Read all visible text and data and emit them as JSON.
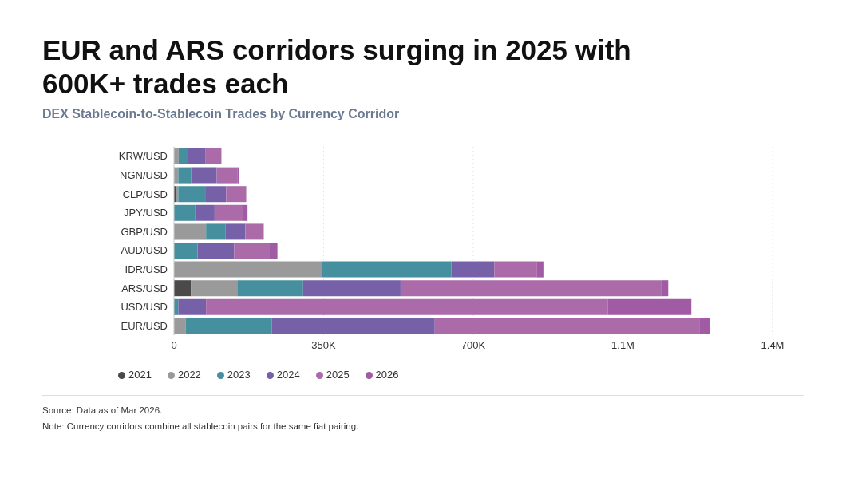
{
  "chart_data": {
    "type": "bar",
    "title": "EUR and ARS corridors surging in 2025 with 600K+ trades each",
    "subtitle": "DEX Stablecoin-to-Stablecoin Trades by Currency Corridor",
    "orientation": "horizontal",
    "stacked": true,
    "categories": [
      "KRW/USD",
      "NGN/USD",
      "CLP/USD",
      "JPY/USD",
      "GBP/USD",
      "AUD/USD",
      "IDR/USD",
      "ARS/USD",
      "USD/USD",
      "EUR/USD"
    ],
    "series": [
      {
        "name": "2021",
        "color": "#4a4a4a",
        "values": [
          0,
          0,
          5000,
          0,
          0,
          0,
          0,
          40000,
          0,
          0
        ]
      },
      {
        "name": "2022",
        "color": "#9a9a9a",
        "values": [
          11000,
          10000,
          5000,
          0,
          75000,
          0,
          347000,
          108000,
          0,
          27000
        ]
      },
      {
        "name": "2023",
        "color": "#458f9e",
        "values": [
          22000,
          30000,
          63000,
          50000,
          45000,
          55000,
          302000,
          154000,
          10000,
          202000
        ]
      },
      {
        "name": "2024",
        "color": "#7661a9",
        "values": [
          40000,
          60000,
          49000,
          45000,
          47000,
          86000,
          100000,
          228000,
          65000,
          381000
        ]
      },
      {
        "name": "2025",
        "color": "#ab6aa8",
        "values": [
          38000,
          49000,
          47000,
          67000,
          43000,
          83000,
          100000,
          609000,
          940000,
          620000
        ]
      },
      {
        "name": "2026",
        "color": "#a05ba4",
        "values": [
          0,
          4000,
          0,
          10000,
          0,
          18000,
          15000,
          17000,
          195000,
          24000
        ]
      }
    ],
    "xlim": [
      0,
      1400000
    ],
    "xticks": [
      0,
      {
        "value": 350000,
        "label": "350K"
      },
      {
        "value": 700000,
        "label": "700K"
      },
      {
        "value": 1050000,
        "label": "1.1M"
      },
      {
        "value": 1400000,
        "label": "1.4M"
      }
    ],
    "grid": "x",
    "legend": "bottom left",
    "annotations": [
      "Source: Data as of Mar 2026.",
      "Note: Currency corridors combine all stablecoin pairs for the same fiat pairing."
    ]
  }
}
